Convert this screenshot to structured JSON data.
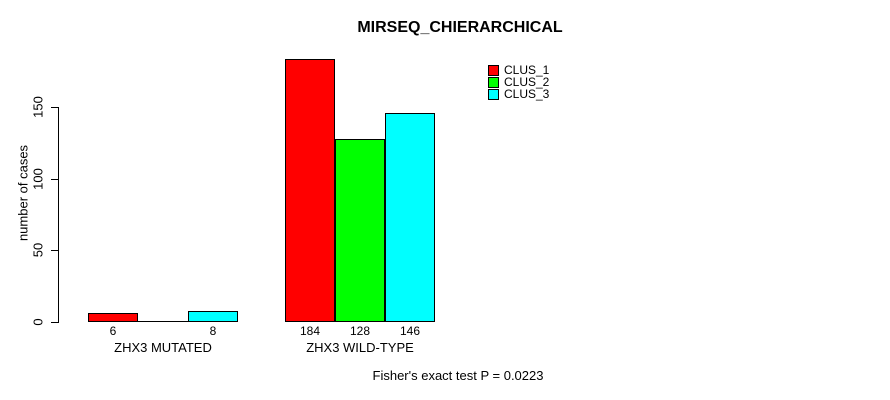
{
  "chart_data": {
    "type": "bar",
    "title": "MIRSEQ_CHIERARCHICAL",
    "ylabel": "number of cases",
    "xlabel": "",
    "categories": [
      "ZHX3 MUTATED",
      "ZHX3 WILD-TYPE"
    ],
    "series": [
      {
        "name": "CLUS_1",
        "color": "#ff0000",
        "values": [
          6,
          184
        ]
      },
      {
        "name": "CLUS_2",
        "color": "#00ff00",
        "values": [
          0,
          128
        ]
      },
      {
        "name": "CLUS_3",
        "color": "#00ffff",
        "values": [
          8,
          146
        ]
      }
    ],
    "yticks": [
      0,
      50,
      100,
      150
    ],
    "ylim": [
      0,
      190
    ],
    "grid": false,
    "bar_value_labels_shown": true,
    "zero_value_labels_hidden": true,
    "legend_position": "top-right",
    "annotation": "Fisher's exact test P = 0.0223"
  },
  "colors": {
    "axis": "#000000",
    "text": "#000000",
    "background": "#ffffff"
  }
}
